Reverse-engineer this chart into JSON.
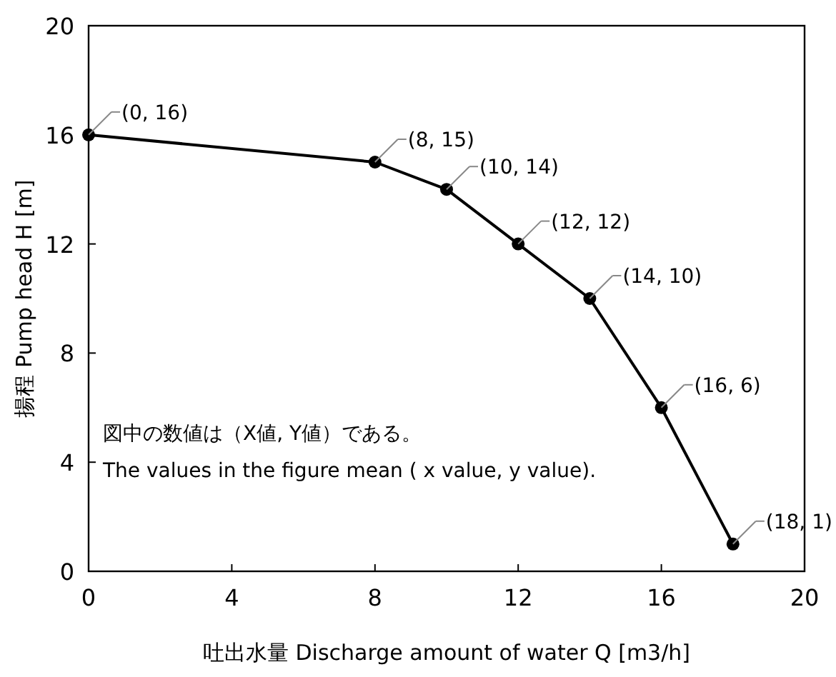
{
  "chart_data": {
    "type": "line",
    "xlabel": "吐出水量 Discharge amount of water Q [m3/h]",
    "ylabel": "揚程 Pump head H [m]",
    "x": [
      0,
      8,
      10,
      12,
      14,
      16,
      18
    ],
    "series": [
      {
        "color": "#000000",
        "values": [
          16,
          15,
          14,
          12,
          10,
          6,
          1
        ]
      }
    ],
    "marker": "circle",
    "line_style": "solid",
    "grid": false,
    "xlim": [
      0,
      20
    ],
    "ylim": [
      0,
      20
    ],
    "xticks": [
      0,
      4,
      8,
      12,
      16,
      20
    ],
    "yticks": [
      0,
      4,
      8,
      12,
      16,
      20
    ],
    "annotations": [
      {
        "text": "(0, 16)",
        "x": 0,
        "y": 16
      },
      {
        "text": "(8, 15)",
        "x": 8,
        "y": 15
      },
      {
        "text": "(10, 14)",
        "x": 10,
        "y": 14
      },
      {
        "text": "(12, 12)",
        "x": 12,
        "y": 12
      },
      {
        "text": "(14, 10)",
        "x": 14,
        "y": 10
      },
      {
        "text": "(16, 6)",
        "x": 16,
        "y": 6
      },
      {
        "text": "(18, 1)",
        "x": 18,
        "y": 1
      },
      "図中の数値は（X値, Y値）である。",
      "The values in the figure mean ( x value, y value)."
    ]
  }
}
